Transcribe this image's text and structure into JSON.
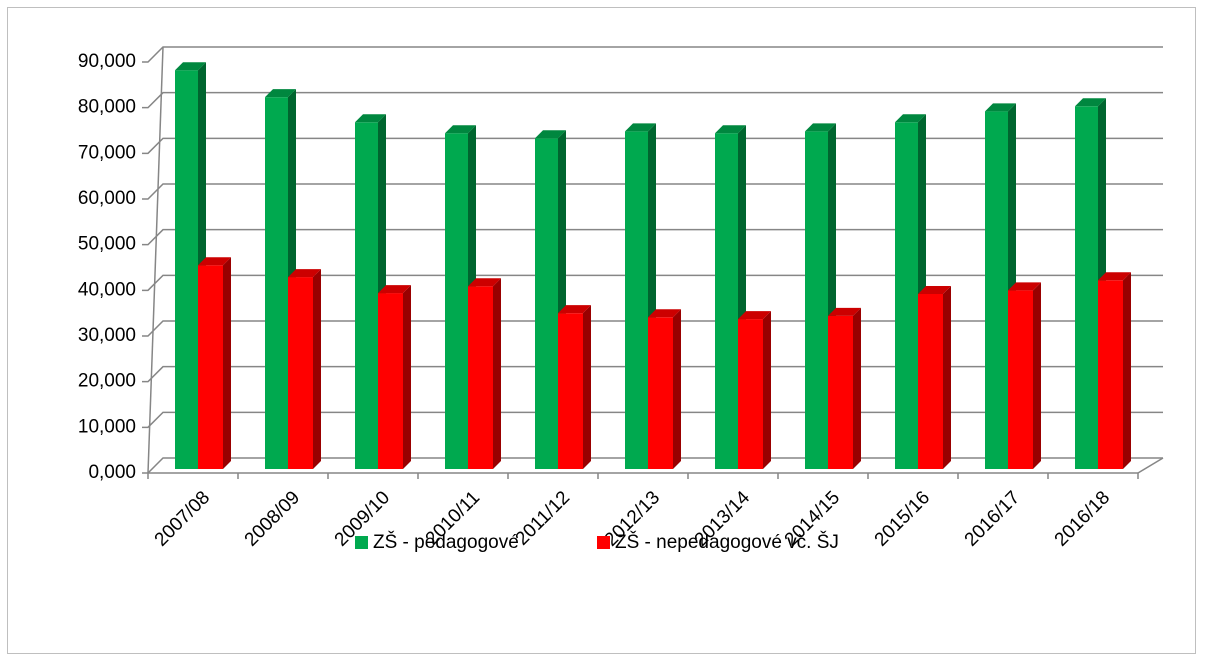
{
  "chart_data": {
    "type": "bar3d",
    "categories": [
      "2007/08",
      "2008/09",
      "2009/10",
      "2010/11",
      "2011/12",
      "2012/13",
      "2013/14",
      "2014/15",
      "2015/16",
      "2016/17",
      "2016/18"
    ],
    "series": [
      {
        "name": "ZŠ - pedagogové",
        "color": "#00a94f",
        "values": [
          88200,
          82300,
          76800,
          74400,
          73300,
          74800,
          74400,
          74800,
          76800,
          79200,
          80300
        ]
      },
      {
        "name": "ZŠ - nepedagogové vč. ŠJ",
        "color": "#ff0000",
        "values": [
          45500,
          42900,
          39400,
          40900,
          35000,
          34100,
          33700,
          34400,
          39200,
          40000,
          42200
        ]
      }
    ],
    "ylim": [
      0,
      90000
    ],
    "yticks": [
      {
        "value": 0,
        "label": "0,000"
      },
      {
        "value": 10000,
        "label": "10,000"
      },
      {
        "value": 20000,
        "label": "20,000"
      },
      {
        "value": 30000,
        "label": "30,000"
      },
      {
        "value": 40000,
        "label": "40,000"
      },
      {
        "value": 50000,
        "label": "50,000"
      },
      {
        "value": 60000,
        "label": "60,000"
      },
      {
        "value": 70000,
        "label": "70,000"
      },
      {
        "value": 80000,
        "label": "80,000"
      },
      {
        "value": 90000,
        "label": "90,000"
      }
    ],
    "grid": true,
    "legend": "bottom"
  }
}
